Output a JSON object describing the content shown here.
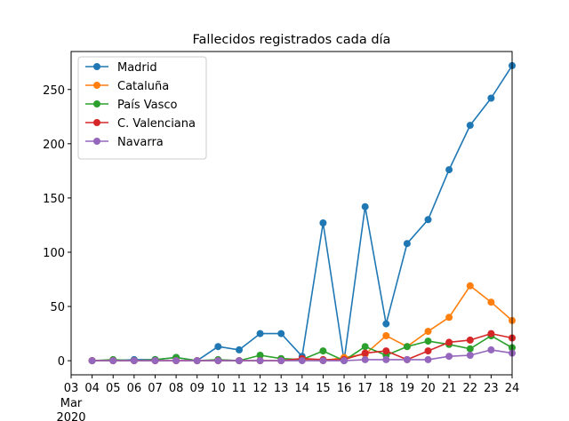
{
  "chart_data": {
    "type": "line",
    "title": "Fallecidos registrados cada día",
    "xlabel": "",
    "ylabel": "",
    "x_tick_labels": [
      "03",
      "04",
      "05",
      "06",
      "07",
      "08",
      "09",
      "10",
      "11",
      "12",
      "13",
      "14",
      "15",
      "16",
      "17",
      "18",
      "19",
      "20",
      "21",
      "22",
      "23",
      "24"
    ],
    "x_month_label": "Mar",
    "x_year_label": "2020",
    "x": [
      "04",
      "05",
      "06",
      "07",
      "08",
      "09",
      "10",
      "11",
      "12",
      "13",
      "14",
      "15",
      "16",
      "17",
      "18",
      "19",
      "20",
      "21",
      "22",
      "23",
      "24"
    ],
    "xlim": [
      3,
      24
    ],
    "ylim": [
      -13,
      285
    ],
    "y_ticks": [
      0,
      50,
      100,
      150,
      200,
      250
    ],
    "grid": false,
    "legend_position": "top-left",
    "series": [
      {
        "name": "Madrid",
        "color": "#1f77b4",
        "values": [
          0,
          0,
          1,
          1,
          3,
          0,
          13,
          10,
          25,
          25,
          4,
          127,
          0,
          142,
          34,
          108,
          130,
          176,
          217,
          242,
          272
        ]
      },
      {
        "name": "Cataluña",
        "color": "#ff7f0e",
        "values": [
          0,
          0,
          0,
          0,
          0,
          0,
          0,
          0,
          0,
          0,
          1,
          0,
          3,
          6,
          23,
          13,
          27,
          40,
          69,
          54,
          37
        ]
      },
      {
        "name": "País Vasco",
        "color": "#2ca02c",
        "values": [
          0,
          1,
          0,
          1,
          3,
          0,
          1,
          0,
          5,
          2,
          1,
          9,
          0,
          13,
          5,
          13,
          18,
          15,
          11,
          23,
          12
        ]
      },
      {
        "name": "C. Valenciana",
        "color": "#d62728",
        "values": [
          0,
          0,
          0,
          0,
          0,
          0,
          0,
          0,
          0,
          0,
          2,
          1,
          1,
          7,
          9,
          1,
          9,
          17,
          19,
          25,
          21
        ]
      },
      {
        "name": "Navarra",
        "color": "#9467bd",
        "values": [
          0,
          0,
          0,
          0,
          0,
          0,
          0,
          0,
          0,
          0,
          0,
          0,
          0,
          1,
          1,
          1,
          1,
          4,
          5,
          10,
          7
        ]
      }
    ]
  }
}
